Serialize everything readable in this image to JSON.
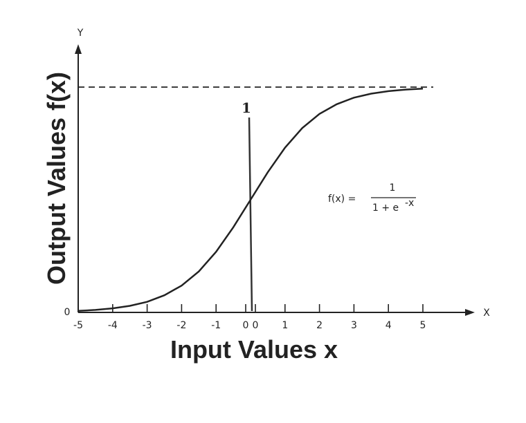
{
  "chart_data": {
    "type": "line",
    "xlabel": "Input Values x",
    "ylabel": "Output Values f(x)",
    "x_axis_letter": "X",
    "y_axis_letter": "Y",
    "y_zero_label": "0",
    "asymptote_label": "1",
    "formula": {
      "lhs": "f(x) =",
      "numerator": "1",
      "denominator": "1 + e",
      "exponent": "-x"
    },
    "xlim": [
      -5,
      5
    ],
    "ylim": [
      0,
      1
    ],
    "x_ticks": [
      "-5",
      "-4",
      "-3",
      "-2",
      "-1",
      "0",
      "0",
      "1",
      "2",
      "3",
      "4",
      "5"
    ],
    "series": [
      {
        "function": "1 / (1 + e^-x)",
        "x": [
          -5,
          -4.5,
          -4,
          -3.5,
          -3,
          -2.5,
          -2,
          -1.5,
          -1,
          -0.5,
          0,
          0.5,
          1,
          1.5,
          2,
          2.5,
          3,
          3.5,
          4,
          4.5,
          5
        ],
        "y": [
          0.0067,
          0.011,
          0.018,
          0.029,
          0.047,
          0.076,
          0.119,
          0.182,
          0.269,
          0.378,
          0.5,
          0.622,
          0.731,
          0.818,
          0.881,
          0.924,
          0.953,
          0.971,
          0.982,
          0.989,
          0.993
        ]
      }
    ],
    "asymptote_y": 1,
    "marker_line_x": 0,
    "grid": false,
    "legend": "none",
    "colors": {
      "ink": "#222222",
      "background": "#ffffff"
    }
  }
}
